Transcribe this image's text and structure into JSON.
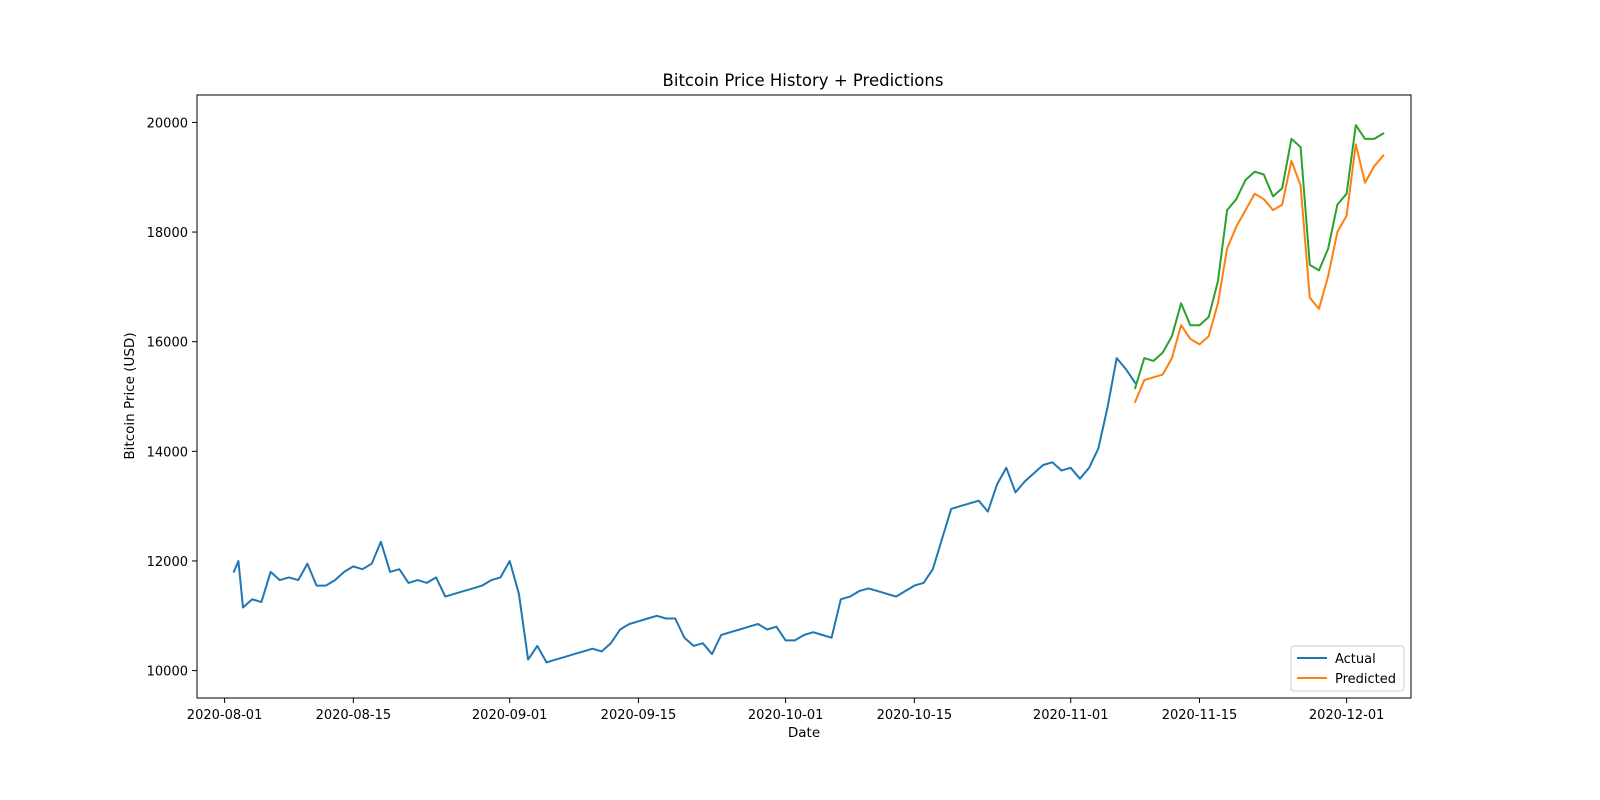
{
  "chart_data": {
    "type": "line",
    "title": "Bitcoin Price History + Predictions",
    "xlabel": "Date",
    "ylabel": "Bitcoin Price (USD)",
    "xlim": [
      "2020-07-29",
      "2020-12-08"
    ],
    "ylim": [
      9500,
      20500
    ],
    "x_ticks": [
      "2020-08-01",
      "2020-08-15",
      "2020-09-01",
      "2020-09-15",
      "2020-10-01",
      "2020-10-15",
      "2020-11-01",
      "2020-11-15",
      "2020-12-01"
    ],
    "y_ticks": [
      10000,
      12000,
      14000,
      16000,
      18000,
      20000
    ],
    "grid": false,
    "legend": {
      "position": "lower right",
      "entries": [
        "Actual",
        "Predicted"
      ]
    },
    "series": [
      {
        "name": "Actual",
        "color": "#1f77b4",
        "x": [
          "2020-08-02",
          "2020-08-02 12:00",
          "2020-08-03",
          "2020-08-04",
          "2020-08-05",
          "2020-08-06",
          "2020-08-07",
          "2020-08-08",
          "2020-08-09",
          "2020-08-10",
          "2020-08-11",
          "2020-08-12",
          "2020-08-13",
          "2020-08-14",
          "2020-08-15",
          "2020-08-16",
          "2020-08-17",
          "2020-08-18",
          "2020-08-19",
          "2020-08-20",
          "2020-08-21",
          "2020-08-22",
          "2020-08-23",
          "2020-08-24",
          "2020-08-25",
          "2020-08-26",
          "2020-08-27",
          "2020-08-28",
          "2020-08-29",
          "2020-08-30",
          "2020-08-31",
          "2020-09-01",
          "2020-09-02",
          "2020-09-03",
          "2020-09-04",
          "2020-09-05",
          "2020-09-06",
          "2020-09-07",
          "2020-09-08",
          "2020-09-09",
          "2020-09-10",
          "2020-09-11",
          "2020-09-12",
          "2020-09-13",
          "2020-09-14",
          "2020-09-15",
          "2020-09-16",
          "2020-09-17",
          "2020-09-18",
          "2020-09-19",
          "2020-09-20",
          "2020-09-21",
          "2020-09-22",
          "2020-09-23",
          "2020-09-24",
          "2020-09-25",
          "2020-09-26",
          "2020-09-27",
          "2020-09-28",
          "2020-09-29",
          "2020-09-30",
          "2020-10-01",
          "2020-10-02",
          "2020-10-03",
          "2020-10-04",
          "2020-10-05",
          "2020-10-06",
          "2020-10-07",
          "2020-10-08",
          "2020-10-09",
          "2020-10-10",
          "2020-10-11",
          "2020-10-12",
          "2020-10-13",
          "2020-10-14",
          "2020-10-15",
          "2020-10-16",
          "2020-10-17",
          "2020-10-18",
          "2020-10-19",
          "2020-10-20",
          "2020-10-21",
          "2020-10-22",
          "2020-10-23",
          "2020-10-24",
          "2020-10-25",
          "2020-10-26",
          "2020-10-27",
          "2020-10-28",
          "2020-10-29",
          "2020-10-30",
          "2020-10-31",
          "2020-11-01",
          "2020-11-02",
          "2020-11-03",
          "2020-11-04",
          "2020-11-05",
          "2020-11-06",
          "2020-11-07",
          "2020-11-08"
        ],
        "y": [
          11800,
          12000,
          11150,
          11300,
          11250,
          11800,
          11650,
          11700,
          11650,
          11950,
          11550,
          11550,
          11650,
          11800,
          11900,
          11850,
          11950,
          12350,
          11800,
          11850,
          11600,
          11650,
          11600,
          11700,
          11350,
          11400,
          11450,
          11500,
          11550,
          11650,
          11700,
          12000,
          11400,
          10200,
          10450,
          10150,
          10200,
          10250,
          10300,
          10350,
          10400,
          10350,
          10500,
          10750,
          10850,
          10900,
          10950,
          11000,
          10950,
          10950,
          10600,
          10450,
          10500,
          10300,
          10650,
          10700,
          10750,
          10800,
          10850,
          10750,
          10800,
          10550,
          10550,
          10650,
          10700,
          10650,
          10600,
          11300,
          11350,
          11450,
          11500,
          11450,
          11400,
          11350,
          11450,
          11550,
          11600,
          11850,
          12400,
          12950,
          13000,
          13050,
          13100,
          12900,
          13400,
          13700,
          13250,
          13450,
          13600,
          13750,
          13800,
          13650,
          13700,
          13500,
          13700,
          14050,
          14800,
          15700,
          15500,
          15250
        ]
      },
      {
        "name": "Predicted",
        "color": "#ff7f0e",
        "x": [
          "2020-11-08",
          "2020-11-09",
          "2020-11-10",
          "2020-11-11",
          "2020-11-12",
          "2020-11-13",
          "2020-11-14",
          "2020-11-15",
          "2020-11-16",
          "2020-11-17",
          "2020-11-18",
          "2020-11-19",
          "2020-11-20",
          "2020-11-21",
          "2020-11-22",
          "2020-11-23",
          "2020-11-24",
          "2020-11-25",
          "2020-11-26",
          "2020-11-27",
          "2020-11-28",
          "2020-11-29",
          "2020-11-30",
          "2020-12-01",
          "2020-12-02",
          "2020-12-03",
          "2020-12-04",
          "2020-12-05"
        ],
        "y": [
          14900,
          15300,
          15350,
          15400,
          15700,
          16300,
          16050,
          15950,
          16100,
          16700,
          17700,
          18100,
          18400,
          18700,
          18600,
          18400,
          18500,
          19300,
          18850,
          16800,
          16600,
          17200,
          18000,
          18300,
          19600,
          18900,
          19200,
          19400
        ]
      },
      {
        "name": "",
        "color": "#2ca02c",
        "x": [
          "2020-11-08",
          "2020-11-09",
          "2020-11-10",
          "2020-11-11",
          "2020-11-12",
          "2020-11-13",
          "2020-11-14",
          "2020-11-15",
          "2020-11-16",
          "2020-11-17",
          "2020-11-18",
          "2020-11-19",
          "2020-11-20",
          "2020-11-21",
          "2020-11-22",
          "2020-11-23",
          "2020-11-24",
          "2020-11-25",
          "2020-11-26",
          "2020-11-27",
          "2020-11-28",
          "2020-11-29",
          "2020-11-30",
          "2020-12-01",
          "2020-12-02",
          "2020-12-03",
          "2020-12-04",
          "2020-12-05"
        ],
        "y": [
          15150,
          15700,
          15650,
          15800,
          16100,
          16700,
          16300,
          16300,
          16450,
          17100,
          18400,
          18600,
          18950,
          19100,
          19050,
          18650,
          18800,
          19700,
          19550,
          17400,
          17300,
          17700,
          18500,
          18700,
          19950,
          19700,
          19700,
          19800
        ]
      }
    ]
  }
}
